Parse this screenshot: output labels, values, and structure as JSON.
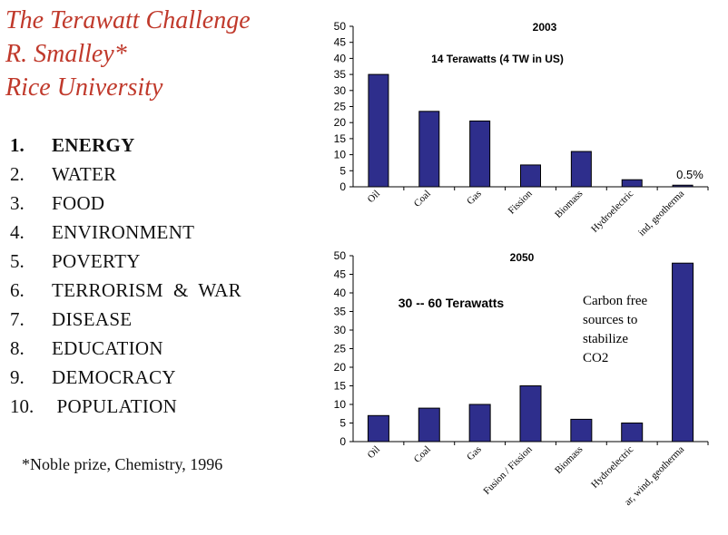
{
  "title": {
    "line1": "The Terawatt Challenge",
    "line2": "R. Smalley*",
    "line3": "Rice University"
  },
  "list": [
    {
      "num": "1.",
      "label": "ENERGY"
    },
    {
      "num": "2.",
      "label": "WATER"
    },
    {
      "num": "3.",
      "label": "FOOD"
    },
    {
      "num": "4.",
      "label": "ENVIRONMENT"
    },
    {
      "num": "5.",
      "label": "POVERTY"
    },
    {
      "num": "6.",
      "label": "TERRORISM  &  WAR"
    },
    {
      "num": "7.",
      "label": "DISEASE"
    },
    {
      "num": "8.",
      "label": "EDUCATION"
    },
    {
      "num": "9.",
      "label": "DEMOCRACY"
    },
    {
      "num": "10.",
      "label": " POPULATION"
    }
  ],
  "footnote": "*Noble prize, Chemistry, 1996",
  "colors": {
    "title": "#c0392b",
    "bar": "#2e2e8c",
    "axis": "#000000"
  },
  "chart_data": [
    {
      "type": "bar",
      "title": "2003",
      "subtitle": "14 Terawatts (4 TW in US)",
      "categories": [
        "Oil",
        "Coal",
        "Gas",
        "Fission",
        "Biomass",
        "Hydroelectric",
        "ind, geotherma"
      ],
      "values": [
        35,
        23.5,
        20.5,
        6.8,
        11,
        2.2,
        0.5
      ],
      "ylim": [
        0,
        50
      ],
      "yticks": [
        0,
        5,
        10,
        15,
        20,
        25,
        30,
        35,
        40,
        45,
        50
      ],
      "annotation": "0.5%"
    },
    {
      "type": "bar",
      "title": "2050",
      "subtitle": "30 -- 60 Terawatts",
      "categories": [
        "Oil",
        "Coal",
        "Gas",
        "Fusion / Fission",
        "Biomass",
        "Hydroelectric",
        "ar, wind, geotherma"
      ],
      "values": [
        7,
        9,
        10,
        15,
        6,
        5,
        48
      ],
      "ylim": [
        0,
        50
      ],
      "yticks": [
        0,
        5,
        10,
        15,
        20,
        25,
        30,
        35,
        40,
        45,
        50
      ],
      "annotation_lines": [
        "Carbon free",
        "sources to",
        "stabilize",
        "CO2"
      ]
    }
  ]
}
